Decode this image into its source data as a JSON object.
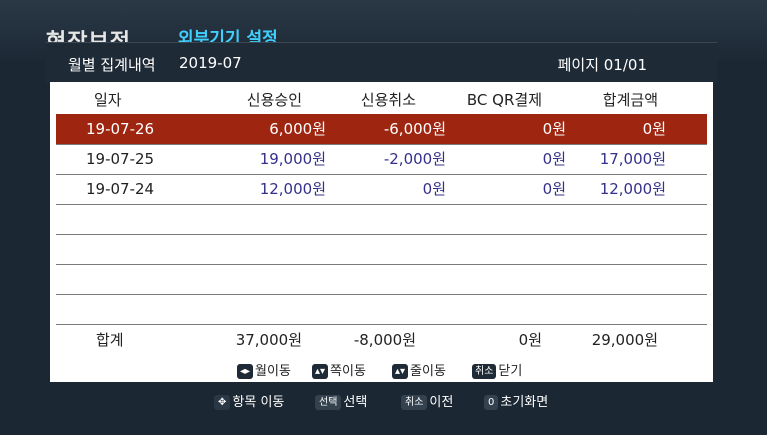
{
  "background": {
    "title": "현장보정",
    "subtitle": "외부기기 설정"
  },
  "popup": {
    "title": "월별 집계내역",
    "month": "2019-07",
    "page": "페이지 01/01"
  },
  "table": {
    "headers": [
      "일자",
      "신용승인",
      "신용취소",
      "BC QR결제",
      "합계금액"
    ],
    "rows": [
      {
        "date": "19-07-26",
        "credit_approval": "6,000원",
        "credit_cancel": "-6,000원",
        "bc_qr": "0원",
        "total": "0원"
      },
      {
        "date": "19-07-25",
        "credit_approval": "19,000원",
        "credit_cancel": "-2,000원",
        "bc_qr": "0원",
        "total": "17,000원"
      },
      {
        "date": "19-07-24",
        "credit_approval": "12,000원",
        "credit_cancel": "0원",
        "bc_qr": "0원",
        "total": "12,000원"
      }
    ],
    "totals": {
      "label": "합계",
      "credit_approval": "37,000원",
      "credit_cancel": "-8,000원",
      "bc_qr": "0원",
      "total": "29,000원"
    }
  },
  "hints": {
    "month_move": {
      "key": "◂▸",
      "label": "월이동"
    },
    "page_move": {
      "key": "▴▾",
      "label": "쪽이동"
    },
    "line_move": {
      "key": "▴▾",
      "label": "줄이동"
    },
    "close": {
      "key": "취소",
      "label": "닫기"
    }
  },
  "footer": {
    "move": {
      "key": "✥",
      "label": "항목 이동"
    },
    "select": {
      "key": "선택",
      "label": "선택"
    },
    "prev": {
      "key": "취소",
      "label": "이전"
    },
    "home": {
      "key": "0",
      "label": "초기화면"
    }
  },
  "colors": {
    "selected_row": "#9e2510",
    "amount_text": "#35308a",
    "accent": "#3fd0ff",
    "background": "#1b2733"
  }
}
